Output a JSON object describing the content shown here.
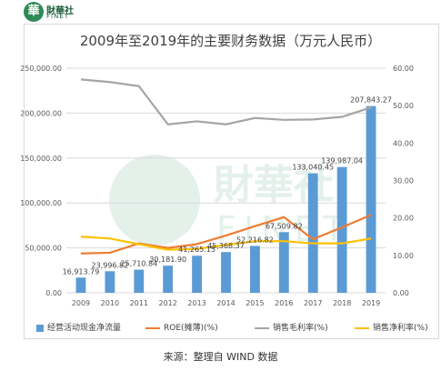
{
  "brand": {
    "badge_char": "華",
    "name": "財華社",
    "sub": "FINET"
  },
  "watermark": {
    "name": "財華社",
    "sub": "FINET"
  },
  "title": "2009年至2019年的主要财务数据（万元人民币）",
  "source": "来源：整理自 WIND 数据",
  "chart_data": {
    "type": "bar",
    "categories": [
      "2009",
      "2010",
      "2011",
      "2012",
      "2013",
      "2014",
      "2015",
      "2016",
      "2017",
      "2018",
      "2019"
    ],
    "left_axis": {
      "ylim": [
        0,
        250000
      ],
      "ticks": [
        "0.00",
        "50,000.00",
        "100,000.00",
        "150,000.00",
        "200,000.00",
        "250,000.00"
      ]
    },
    "right_axis": {
      "ylim": [
        0,
        60
      ],
      "ticks": [
        "0.00",
        "10.00",
        "20.00",
        "30.00",
        "40.00",
        "50.00",
        "60.00"
      ]
    },
    "series": [
      {
        "name": "经营活动现金净流量",
        "kind": "bar",
        "axis": "left",
        "color": "#5b9bd5",
        "values": [
          16913.79,
          23996.82,
          25710.84,
          30181.9,
          41265.15,
          45368.37,
          52216.82,
          67509.82,
          133040.45,
          139987.04,
          207843.27
        ],
        "labels": [
          "16,913.79",
          "23,996.82",
          "25,710.84",
          "30,181.90",
          "41,265.15",
          "45,368.37",
          "52,216.82",
          "67,509.82",
          "133,040.45",
          "139,987.04",
          "207,843.27"
        ]
      },
      {
        "name": "ROE(摊薄)(%)",
        "kind": "line",
        "axis": "right",
        "color": "#ed7d31",
        "values": [
          10.5,
          10.7,
          13.2,
          12.0,
          13.0,
          15.3,
          17.8,
          20.2,
          14.3,
          17.5,
          20.8
        ]
      },
      {
        "name": "销售毛利率(%)",
        "kind": "line",
        "axis": "right",
        "color": "#a5a5a5",
        "values": [
          57.0,
          56.3,
          55.2,
          45.0,
          45.8,
          45.0,
          46.7,
          46.2,
          46.3,
          47.0,
          49.5
        ]
      },
      {
        "name": "销售净利率(%)",
        "kind": "line",
        "axis": "right",
        "color": "#ffc000",
        "values": [
          15.0,
          14.5,
          13.0,
          11.5,
          11.7,
          12.8,
          13.8,
          13.8,
          13.2,
          13.2,
          14.5
        ]
      }
    ],
    "grid": true,
    "legend_position": "bottom"
  }
}
